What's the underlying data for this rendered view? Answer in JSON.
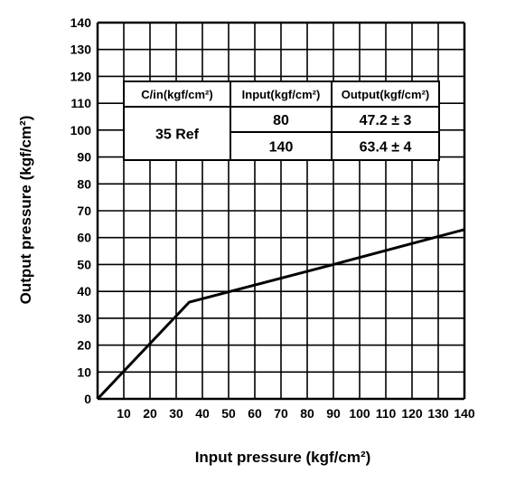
{
  "chart_data": {
    "type": "line",
    "title": "",
    "xlabel": "Input pressure (kgf/cm²)",
    "ylabel": "Output pressure (kgf/cm²)",
    "xlim": [
      0,
      140
    ],
    "ylim": [
      0,
      140
    ],
    "x_ticks": [
      "10",
      "20",
      "30",
      "40",
      "50",
      "60",
      "70",
      "80",
      "90",
      "100",
      "110",
      "120",
      "130",
      "140"
    ],
    "y_ticks": [
      "0",
      "10",
      "20",
      "30",
      "40",
      "50",
      "60",
      "70",
      "80",
      "90",
      "100",
      "110",
      "120",
      "130",
      "140"
    ],
    "grid": true,
    "series": [
      {
        "x": [
          0,
          35,
          90,
          140
        ],
        "y": [
          0,
          36,
          50,
          63
        ]
      }
    ],
    "table": {
      "headers": [
        "C/in(kgf/cm²)",
        "Input(kgf/cm²)",
        "Output(kgf/cm²)"
      ],
      "ref_label": "35 Ref",
      "rows": [
        {
          "input": "80",
          "output": "47.2 ± 3"
        },
        {
          "input": "140",
          "output": "63.4 ± 4"
        }
      ]
    }
  }
}
